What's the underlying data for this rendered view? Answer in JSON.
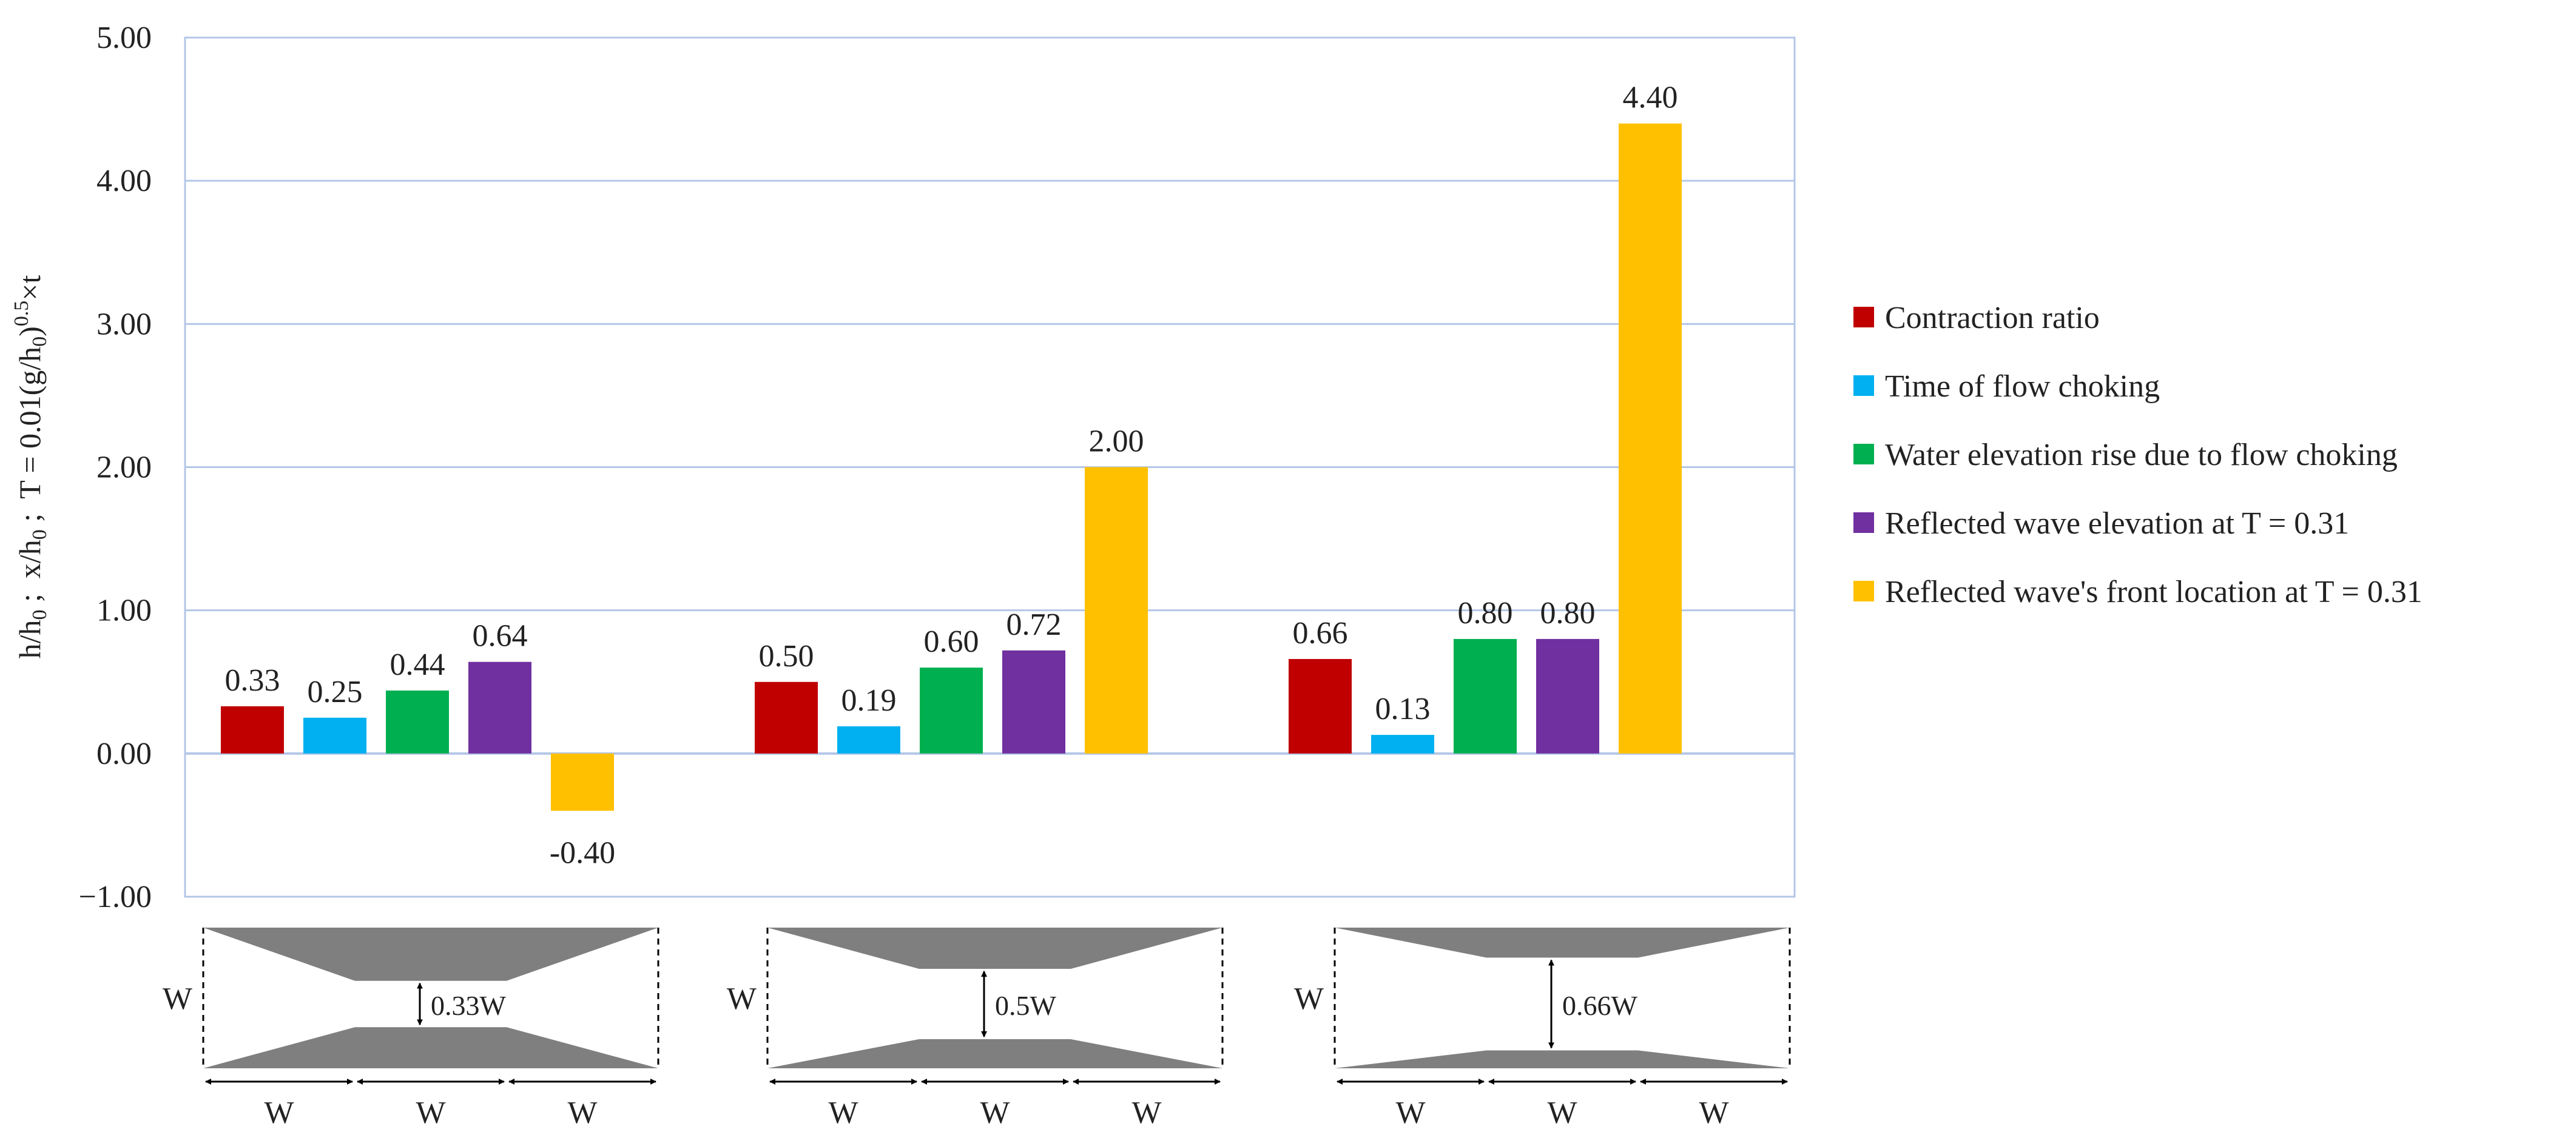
{
  "chart_data": {
    "type": "bar",
    "categories": [
      "",
      "",
      ""
    ],
    "series": [
      {
        "name": "Contraction ratio",
        "color": "#c00000",
        "values": [
          0.33,
          0.5,
          0.66
        ],
        "labels": [
          "0.33",
          "0.50",
          "0.66"
        ]
      },
      {
        "name": "Time of flow choking",
        "color": "#00b0f0",
        "values": [
          0.25,
          0.19,
          0.13
        ],
        "labels": [
          "0.25",
          "0.19",
          "0.13"
        ]
      },
      {
        "name": "Water elevation rise due to flow choking",
        "color": "#00b050",
        "values": [
          0.44,
          0.6,
          0.8
        ],
        "labels": [
          "0.44",
          "0.60",
          "0.80"
        ]
      },
      {
        "name": "Reflected wave elevation at T = 0.31",
        "color": "#7030a0",
        "values": [
          0.64,
          0.72,
          0.8
        ],
        "labels": [
          "0.64",
          "0.72",
          "0.80"
        ]
      },
      {
        "name": "Reflected wave's front location at T = 0.31",
        "color": "#ffc000",
        "values": [
          -0.4,
          2.0,
          4.4
        ],
        "labels": [
          "-0.40",
          "2.00",
          "4.40"
        ]
      }
    ],
    "title": "",
    "xlabel": "",
    "ylabel": {
      "a": "h/h",
      "b": "0",
      "c": " ;  x/h",
      "d": "0",
      "e": " ;  T = 0.01(g/h",
      "f": "0",
      "g": ")",
      "h": "0.5",
      "i": "×t"
    },
    "ylim": [
      -1,
      5
    ],
    "yticks": [
      -1,
      0,
      1,
      2,
      3,
      4,
      5
    ],
    "ytick_labels": [
      "−1.00",
      "0.00",
      "1.00",
      "2.00",
      "3.00",
      "4.00",
      "5.00"
    ],
    "grid": true,
    "legend_position": "right",
    "colors": {
      "grid": "#b4c7e7",
      "axis": "#b4c7e7",
      "plot_border": "#b4c7e7",
      "channel": "#7f7f7f"
    }
  },
  "channel_diagrams": [
    {
      "width_label": "W",
      "gap_label": "0.33W",
      "gap_fraction": 0.33,
      "segment_labels": [
        "W",
        "W",
        "W"
      ]
    },
    {
      "width_label": "W",
      "gap_label": "0.5W",
      "gap_fraction": 0.5,
      "segment_labels": [
        "W",
        "W",
        "W"
      ]
    },
    {
      "width_label": "W",
      "gap_label": "0.66W",
      "gap_fraction": 0.66,
      "segment_labels": [
        "W",
        "W",
        "W"
      ]
    }
  ]
}
